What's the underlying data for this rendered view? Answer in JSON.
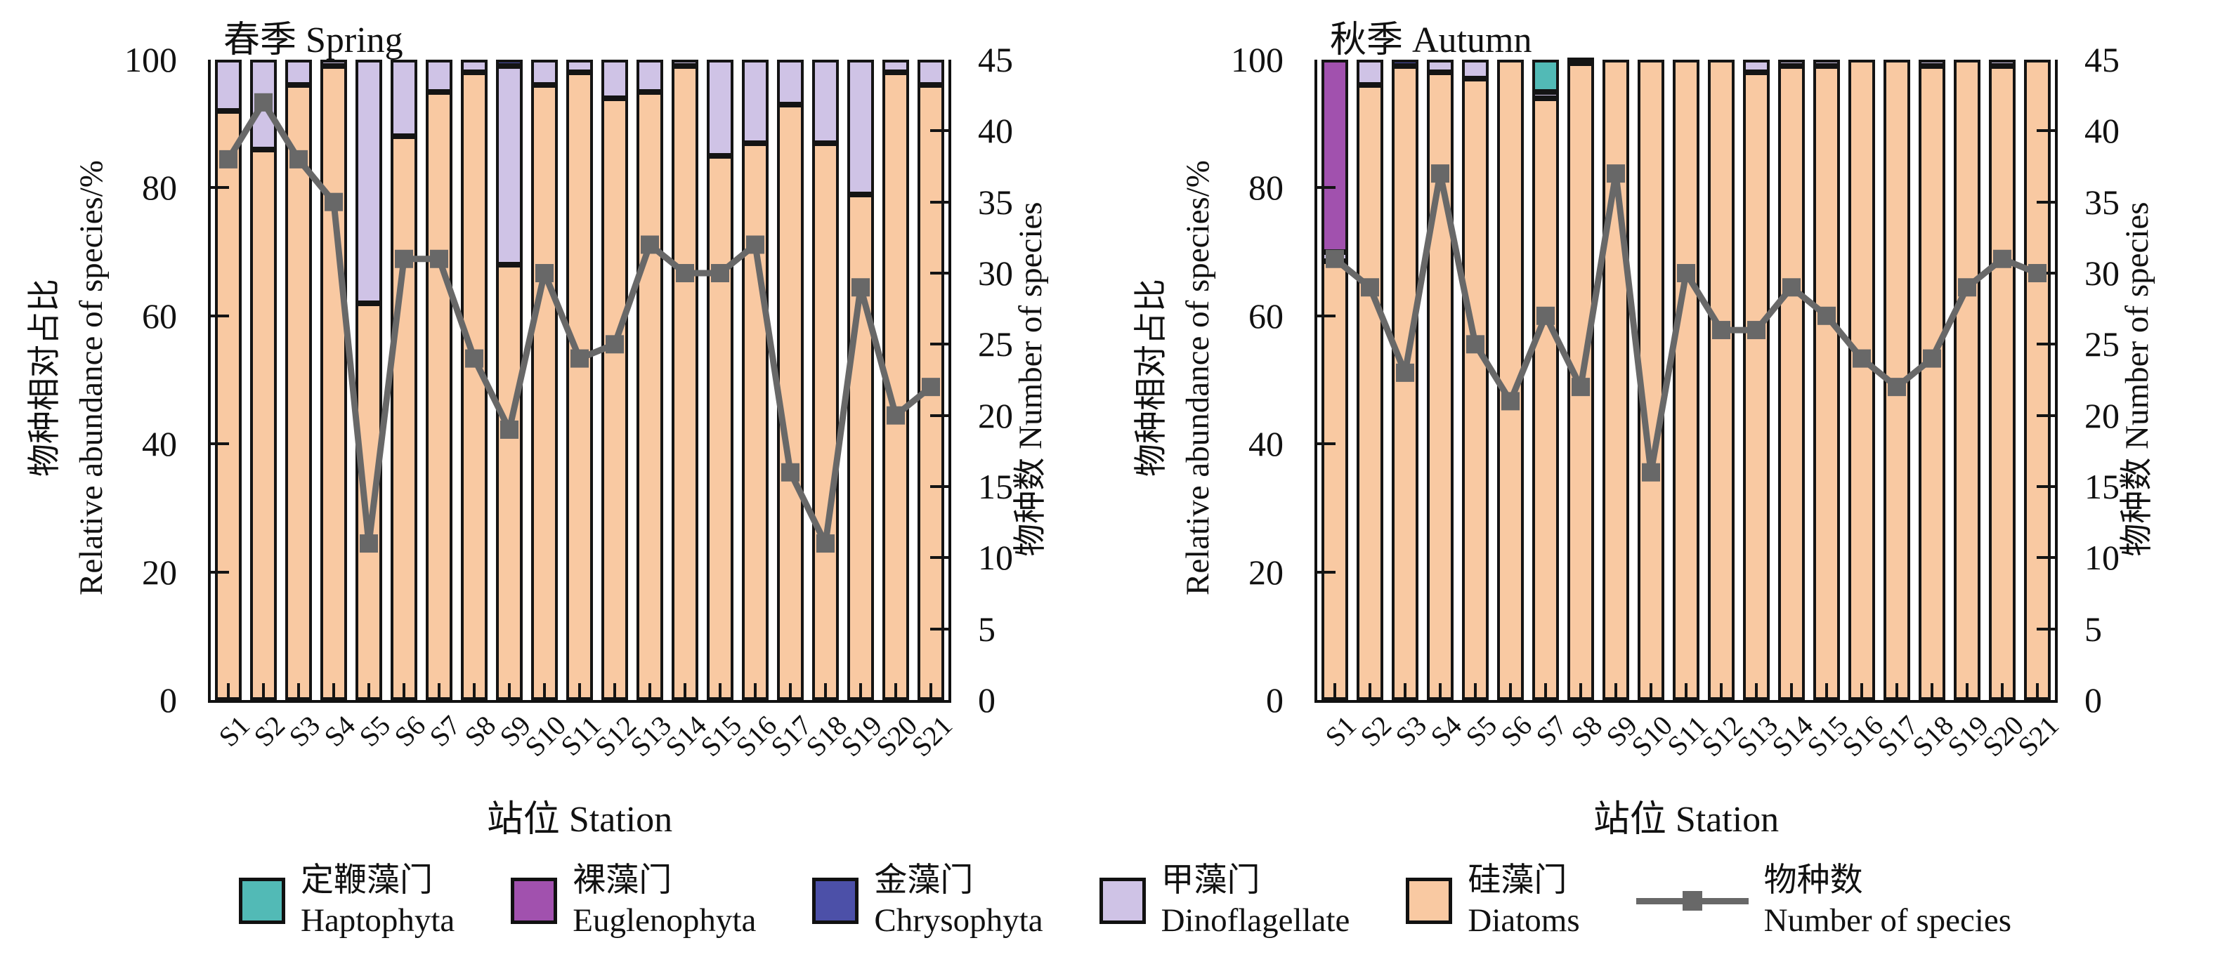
{
  "figure_title": "",
  "axis": {
    "y_left_label_cn": "物种相对占比",
    "y_left_label_en": "Relative abundance of species/%",
    "y_right_label": "物种数 Number of species",
    "x_label": "站位 Station",
    "y_left_ticks": [
      0,
      20,
      40,
      60,
      80,
      100
    ],
    "y_right_ticks": [
      0,
      5,
      10,
      15,
      20,
      25,
      30,
      35,
      40,
      45
    ],
    "y_left_max": 100,
    "y_right_max": 45
  },
  "colors": {
    "haptophyta": "#52bab6",
    "euglenophyta": "#a151ae",
    "chrysophyta": "#4c50a8",
    "dinoflagellate": "#cfc3e6",
    "diatoms": "#f9c9a2",
    "species_line": "#686868",
    "bar_border": "#141414"
  },
  "chart_data": [
    {
      "type": "bar",
      "subtype": "stacked-bar-with-line",
      "title": "春季 Spring",
      "categories": [
        "S1",
        "S2",
        "S3",
        "S4",
        "S5",
        "S6",
        "S7",
        "S8",
        "S9",
        "S10",
        "S11",
        "S12",
        "S13",
        "S14",
        "S15",
        "S16",
        "S17",
        "S18",
        "S19",
        "S20",
        "S21"
      ],
      "ylabel_left": "物种相对占比 Relative abundance of species/%",
      "ylabel_right": "物种数 Number of species",
      "xlabel": "站位 Station",
      "ylim_left": [
        0,
        100
      ],
      "ylim_right": [
        0,
        45
      ],
      "series": [
        {
          "name": "硅藻门 Diatoms",
          "key": "diatoms",
          "values": [
            92,
            86,
            96,
            99,
            62,
            88,
            95,
            98,
            68,
            96,
            98,
            94,
            95,
            99,
            85,
            87,
            93,
            87,
            79,
            98,
            96
          ]
        },
        {
          "name": "甲藻门 Dinoflagellate",
          "key": "dinoflagellate",
          "values": [
            8,
            14,
            4,
            1,
            38,
            12,
            5,
            2,
            31,
            4,
            2,
            6,
            5,
            1,
            15,
            13,
            7,
            13,
            21,
            2,
            4
          ]
        },
        {
          "name": "金藻门 Chrysophyta",
          "key": "chrysophyta",
          "values": [
            0,
            0,
            0,
            0,
            0,
            0,
            0,
            0,
            1,
            0,
            0,
            0,
            0,
            0,
            0,
            0,
            0,
            0,
            0,
            0,
            0
          ]
        },
        {
          "name": "裸藻门 Euglenophyta",
          "key": "euglenophyta",
          "values": [
            0,
            0,
            0,
            0,
            0,
            0,
            0,
            0,
            0,
            0,
            0,
            0,
            0,
            0,
            0,
            0,
            0,
            0,
            0,
            0,
            0
          ]
        },
        {
          "name": "定鞭藻门 Haptophyta",
          "key": "haptophyta",
          "values": [
            0,
            0,
            0,
            0,
            0,
            0,
            0,
            0,
            0,
            0,
            0,
            0,
            0,
            0,
            0,
            0,
            0,
            0,
            0,
            0,
            0
          ]
        }
      ],
      "line": {
        "name": "物种数 Number of species",
        "values": [
          38,
          42,
          38,
          35,
          11,
          31,
          31,
          24,
          19,
          30,
          24,
          25,
          32,
          30,
          30,
          32,
          16,
          11,
          29,
          20,
          22
        ]
      }
    },
    {
      "type": "bar",
      "subtype": "stacked-bar-with-line",
      "title": "秋季 Autumn",
      "categories": [
        "S1",
        "S2",
        "S3",
        "S4",
        "S5",
        "S6",
        "S7",
        "S8",
        "S9",
        "S10",
        "S11",
        "S12",
        "S13",
        "S14",
        "S15",
        "S16",
        "S17",
        "S18",
        "S19",
        "S20",
        "S21"
      ],
      "ylabel_left": "物种相对占比 Relative abundance of species/%",
      "ylabel_right": "物种数 Number of species",
      "xlabel": "站位 Station",
      "ylim_left": [
        0,
        100
      ],
      "ylim_right": [
        0,
        45
      ],
      "series": [
        {
          "name": "硅藻门 Diatoms",
          "key": "diatoms",
          "values": [
            68.5,
            96,
            99,
            98,
            97,
            100,
            94,
            99.5,
            100,
            100,
            100,
            100,
            98,
            99,
            99,
            100,
            100,
            99,
            100,
            99,
            100
          ]
        },
        {
          "name": "甲藻门 Dinoflagellate",
          "key": "dinoflagellate",
          "values": [
            1.5,
            4,
            0,
            2,
            3,
            0,
            1,
            0.5,
            0,
            0,
            0,
            0,
            2,
            1,
            1,
            0,
            0,
            1,
            0,
            1,
            0
          ]
        },
        {
          "name": "金藻门 Chrysophyta",
          "key": "chrysophyta",
          "values": [
            0,
            0,
            1,
            0,
            0,
            0,
            0,
            0,
            0,
            0,
            0,
            0,
            0,
            0,
            0,
            0,
            0,
            0,
            0,
            0,
            0
          ]
        },
        {
          "name": "裸藻门 Euglenophyta",
          "key": "euglenophyta",
          "values": [
            30,
            0,
            0,
            0,
            0,
            0,
            0,
            0,
            0,
            0,
            0,
            0,
            0,
            0,
            0,
            0,
            0,
            0,
            0,
            0,
            0
          ]
        },
        {
          "name": "定鞭藻门 Haptophyta",
          "key": "haptophyta",
          "values": [
            0,
            0,
            0,
            0,
            0,
            0,
            5,
            0,
            0,
            0,
            0,
            0,
            0,
            0,
            0,
            0,
            0,
            0,
            0,
            0,
            0
          ]
        }
      ],
      "line": {
        "name": "物种数 Number of species",
        "values": [
          31,
          29,
          23,
          37,
          25,
          21,
          27,
          22,
          37,
          16,
          30,
          26,
          26,
          29,
          27,
          24,
          22,
          24,
          29,
          31,
          30
        ]
      }
    }
  ],
  "legend": [
    {
      "label_cn": "定鞭藻门",
      "label_en": "Haptophyta",
      "color_key": "haptophyta",
      "symbol": "swatch"
    },
    {
      "label_cn": "裸藻门",
      "label_en": "Euglenophyta",
      "color_key": "euglenophyta",
      "symbol": "swatch"
    },
    {
      "label_cn": "金藻门",
      "label_en": "Chrysophyta",
      "color_key": "chrysophyta",
      "symbol": "swatch"
    },
    {
      "label_cn": "甲藻门",
      "label_en": "Dinoflagellate",
      "color_key": "dinoflagellate",
      "symbol": "swatch"
    },
    {
      "label_cn": "硅藻门",
      "label_en": "Diatoms",
      "color_key": "diatoms",
      "symbol": "swatch"
    },
    {
      "label_cn": "物种数",
      "label_en": "Number of species",
      "color_key": "species_line",
      "symbol": "line-marker"
    }
  ]
}
